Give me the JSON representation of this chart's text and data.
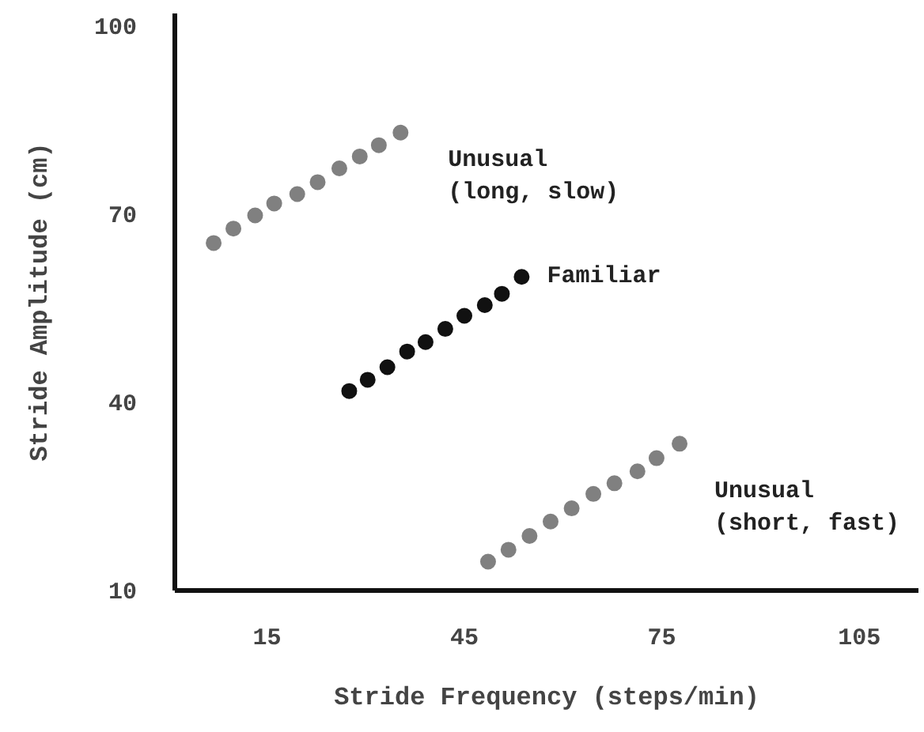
{
  "chart_data": {
    "type": "scatter",
    "xlabel": "Stride Frequency (steps/min)",
    "ylabel": "Stride Amplitude (cm)",
    "xlim": [
      1,
      114
    ],
    "ylim": [
      10,
      102
    ],
    "xticks": [
      15,
      45,
      75,
      105
    ],
    "yticks": [
      10,
      40,
      70,
      100
    ],
    "grid": false,
    "marker": "circle",
    "series": [
      {
        "name": "Unusual\n(long, slow)",
        "color": "#808080",
        "x": [
          6.9,
          9.9,
          13.2,
          16.1,
          19.6,
          22.7,
          26.0,
          29.1,
          32.0,
          35.3
        ],
        "values": [
          65.4,
          67.7,
          69.8,
          71.7,
          73.2,
          75.1,
          77.3,
          79.2,
          81.0,
          83.0
        ]
      },
      {
        "name": "Familiar",
        "color": "#111111",
        "x": [
          27.5,
          30.3,
          33.3,
          36.3,
          39.1,
          42.1,
          45.0,
          48.1,
          50.7,
          53.7
        ],
        "values": [
          41.8,
          43.6,
          45.6,
          48.1,
          49.6,
          51.7,
          53.8,
          55.5,
          57.3,
          60.0
        ]
      },
      {
        "name": "Unusual\n(short, fast)",
        "color": "#808080",
        "x": [
          48.6,
          51.7,
          54.9,
          58.1,
          61.3,
          64.6,
          67.8,
          71.3,
          74.2,
          77.7
        ],
        "values": [
          14.6,
          16.5,
          18.7,
          21.0,
          23.1,
          25.4,
          27.1,
          29.0,
          31.1,
          33.4
        ]
      }
    ]
  }
}
